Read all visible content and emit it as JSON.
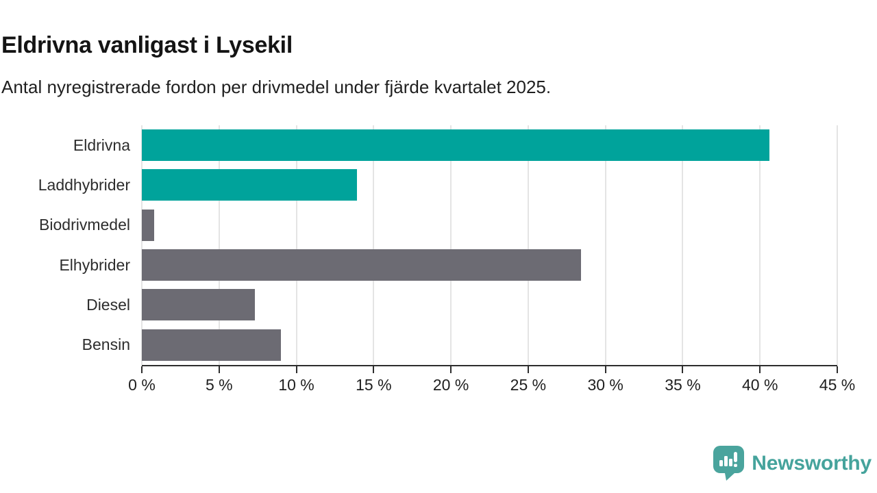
{
  "header": {
    "title": "Eldrivna vanligast i Lysekil",
    "subtitle": "Antal nyregistrerade fordon per drivmedel under fjärde kvartalet 2025."
  },
  "chart_data": {
    "type": "bar",
    "orientation": "horizontal",
    "title": "Eldrivna vanligast i Lysekil",
    "subtitle": "Antal nyregistrerade fordon per drivmedel under fjärde kvartalet 2025.",
    "categories": [
      "Eldrivna",
      "Laddhybrider",
      "Biodrivmedel",
      "Elhybrider",
      "Diesel",
      "Bensin"
    ],
    "values": [
      40.6,
      13.9,
      0.8,
      28.4,
      7.3,
      9.0
    ],
    "unit": "%",
    "xlabel": "",
    "ylabel": "",
    "xlim": [
      0,
      45
    ],
    "x_ticks": [
      0,
      5,
      10,
      15,
      20,
      25,
      30,
      35,
      40,
      45
    ],
    "x_tick_labels": [
      "0 %",
      "5 %",
      "10 %",
      "15 %",
      "20 %",
      "25 %",
      "30 %",
      "35 %",
      "40 %",
      "45 %"
    ],
    "grid": "vertical-only",
    "legend": "none",
    "colors": {
      "highlight": "#00a39b",
      "default": "#6c6b73",
      "gridline": "#e4e4e4",
      "axis": "#2d2d2d"
    },
    "bar_colors": [
      "#00a39b",
      "#00a39b",
      "#6c6b73",
      "#6c6b73",
      "#6c6b73",
      "#6c6b73"
    ]
  },
  "footer": {
    "brand": "Newsworthy",
    "brand_color": "#45a39c",
    "logo_icon": "bar-chart-speech-bubble-icon"
  }
}
